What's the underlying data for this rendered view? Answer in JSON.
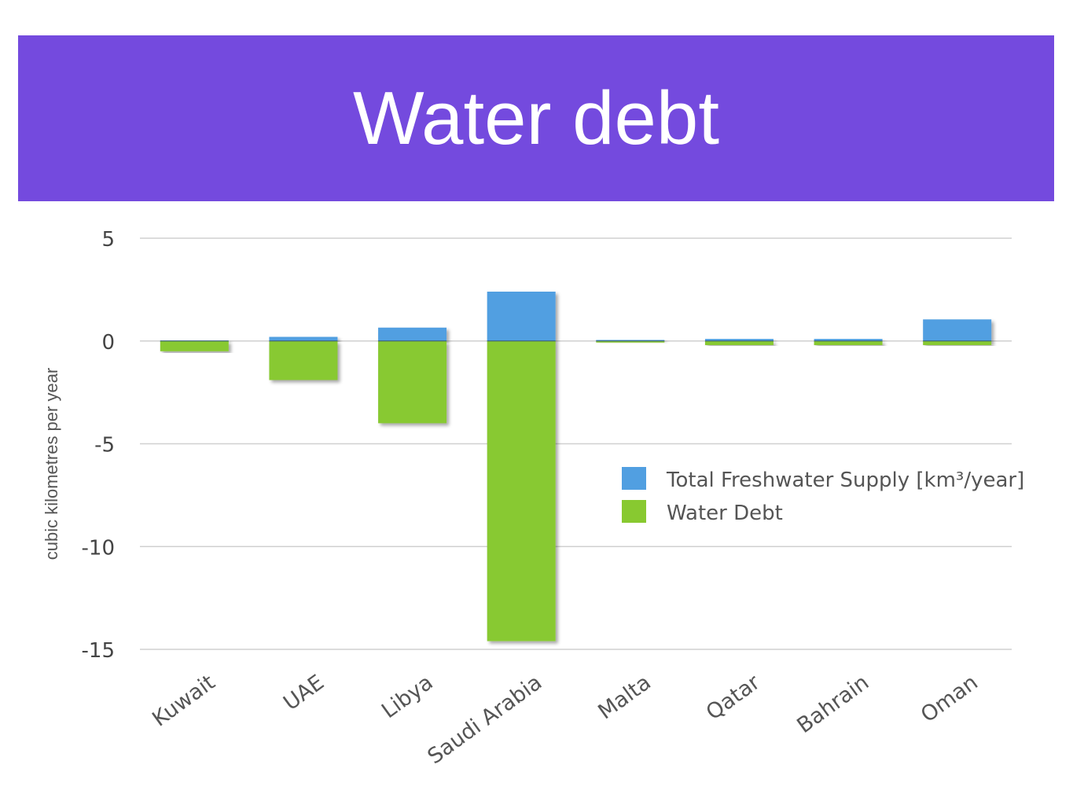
{
  "header": {
    "title": "Water debt"
  },
  "chart_data": {
    "type": "bar",
    "stacked": true,
    "title": "Water debt",
    "ylabel": "cubic kilometres per year",
    "xlabel": "",
    "ylim": [
      -15,
      5
    ],
    "yticks": [
      5,
      0,
      -5,
      -10,
      -15
    ],
    "grid": true,
    "legend_position": "right",
    "categories": [
      "Kuwait",
      "UAE",
      "Libya",
      "Saudi Arabia",
      "Malta",
      "Qatar",
      "Bahrain",
      "Oman"
    ],
    "series": [
      {
        "name": "Total Freshwater Supply [km³/year]",
        "color": "#519fe1",
        "values": [
          0.02,
          0.2,
          0.65,
          2.4,
          0.05,
          0.1,
          0.1,
          1.05
        ]
      },
      {
        "name": "Water Debt",
        "color": "#88c930",
        "values": [
          -0.5,
          -1.9,
          -4.0,
          -14.6,
          -0.05,
          -0.2,
          -0.2,
          -0.2
        ]
      }
    ]
  }
}
